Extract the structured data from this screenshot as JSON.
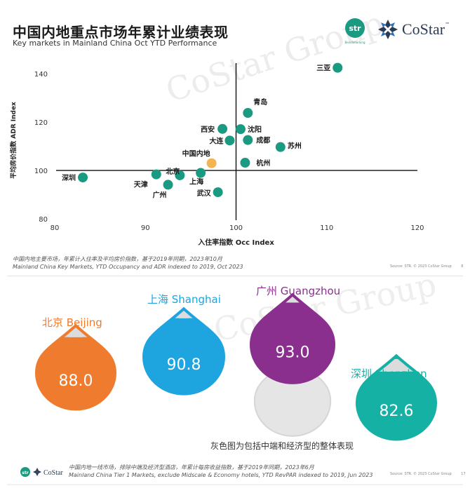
{
  "header": {
    "title": "中国内地重点市场年累计业绩表现",
    "subtitle": "Key markets in Mainland China Oct YTD Performance",
    "str_logo": "str",
    "str_tagline": "Benchmarking",
    "costar_logo": "CoStar",
    "costar_tm": "™"
  },
  "watermark": "CoStar Group",
  "chart_data": [
    {
      "type": "scatter",
      "title": "",
      "xlabel": "入住率指数 Occ Index",
      "ylabel": "平均房价指数 ADR Index",
      "xlim": [
        80,
        120
      ],
      "ylim": [
        80,
        145
      ],
      "xticks": [
        80,
        90,
        100,
        110,
        120
      ],
      "yticks": [
        80,
        100,
        120,
        140
      ],
      "crosshair": {
        "x": 100,
        "y": 100
      },
      "grid": false,
      "point_color": "#1b9a82",
      "highlight_color": "#f3b454",
      "points": [
        {
          "label": "三亚",
          "x": 111.2,
          "y": 142.5
        },
        {
          "label": "青岛",
          "x": 101.3,
          "y": 123.8
        },
        {
          "label": "西安",
          "x": 98.5,
          "y": 117.2
        },
        {
          "label": "沈阳",
          "x": 100.5,
          "y": 117.1
        },
        {
          "label": "大连",
          "x": 99.3,
          "y": 112.4
        },
        {
          "label": "成都",
          "x": 101.3,
          "y": 112.6
        },
        {
          "label": "苏州",
          "x": 104.9,
          "y": 109.7
        },
        {
          "label": "中国内地",
          "x": 97.3,
          "y": 103.0,
          "highlight": true
        },
        {
          "label": "杭州",
          "x": 101.0,
          "y": 103.2
        },
        {
          "label": "北京",
          "x": 93.8,
          "y": 98.0
        },
        {
          "label": "天津",
          "x": 91.2,
          "y": 98.4
        },
        {
          "label": "上海",
          "x": 96.1,
          "y": 99.0
        },
        {
          "label": "深圳",
          "x": 83.1,
          "y": 97.1
        },
        {
          "label": "广州",
          "x": 92.5,
          "y": 94.1
        },
        {
          "label": "武汉",
          "x": 98.0,
          "y": 91.0
        }
      ]
    },
    {
      "type": "bar",
      "title": "",
      "categories": [
        "北京 Beijing",
        "上海 Shanghai",
        "广州 Guangzhou",
        "深圳 Shenzhen"
      ],
      "values": [
        88.0,
        90.8,
        93.0,
        82.6
      ],
      "labels": [
        "88.0",
        "90.8",
        "93.0",
        "82.6"
      ],
      "colors": [
        "#ef7b2f",
        "#1ea4df",
        "#8a2f8d",
        "#16b1a5"
      ]
    }
  ],
  "notes": {
    "chart1_cn": "中国内地主要市场，年累计入住率及平均房价指数，基于2019年同期，2023年10月",
    "chart1_en": "Mainland China Key Markets, YTD Occupancy and ADR indexed to 2019, Oct 2023",
    "chart1_source": "Source: STR. © 2023 CoStar Group",
    "chart1_page": "8",
    "gray_note": "灰色图为包括中端和经济型的整体表现",
    "chart2_cn": "中国内地一线市场，排除中端及经济型酒店，年累计每房收益指数，基于2019年同期，2023年6月",
    "chart2_en": "Mainland China Tier 1 Markets, exclude Midscale & Economy hotels, YTD RevPAR indexed to 2019, Jun 2023",
    "chart2_source": "Source: STR. © 2023 CoStar Group",
    "chart2_page": "17",
    "footer_str": "str",
    "footer_costar": "CoStar"
  }
}
